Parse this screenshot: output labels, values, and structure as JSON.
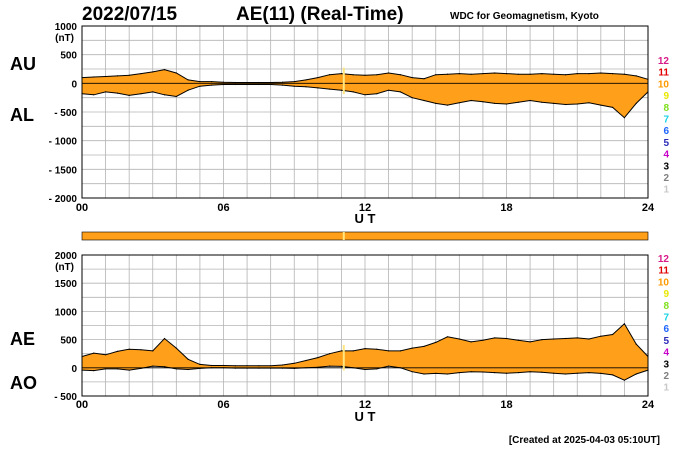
{
  "header": {
    "date": "2022/07/15",
    "title": "AE(11) (Real-Time)",
    "source": "WDC for Geomagnetism, Kyoto"
  },
  "footer": {
    "created": "[Created at 2025-04-03 05:10UT]"
  },
  "legend_numbers": [
    {
      "label": "12",
      "color": "#d81b8a"
    },
    {
      "label": "11",
      "color": "#e00000"
    },
    {
      "label": "10",
      "color": "#ff9a00"
    },
    {
      "label": "9",
      "color": "#e8e800"
    },
    {
      "label": "8",
      "color": "#7fe01e"
    },
    {
      "label": "7",
      "color": "#19d3e6"
    },
    {
      "label": "6",
      "color": "#1e66ff"
    },
    {
      "label": "5",
      "color": "#2a2ab8"
    },
    {
      "label": "4",
      "color": "#c800c8"
    },
    {
      "label": "3",
      "color": "#000000"
    },
    {
      "label": "2",
      "color": "#808080"
    },
    {
      "label": "1",
      "color": "#c8c8c8"
    }
  ],
  "colors": {
    "fill": "#ff9f1a",
    "line": "#000000",
    "grid": "#b4b4b4",
    "marker": "#ffe680",
    "status_bar": "#ff9f1a"
  },
  "chart_data": [
    {
      "type": "area",
      "panel": "AU/AL",
      "upper_label": "AU",
      "lower_label": "AL",
      "unit": "(nT)",
      "xlabel": "U T",
      "xlim": [
        0,
        24
      ],
      "ylim": [
        -2000,
        1000
      ],
      "x_ticks": [
        "00",
        "06",
        "12",
        "18",
        "24"
      ],
      "y_ticks": [
        "1000",
        "500",
        "0",
        "- 500",
        "- 1000",
        "- 1500",
        "- 2000"
      ],
      "x": [
        0,
        0.5,
        1,
        1.5,
        2,
        2.5,
        3,
        3.5,
        4,
        4.5,
        5,
        5.5,
        6,
        6.5,
        7,
        7.5,
        8,
        8.5,
        9,
        9.5,
        10,
        10.5,
        11,
        11.5,
        12,
        12.5,
        13,
        13.5,
        14,
        14.5,
        15,
        15.5,
        16,
        16.5,
        17,
        17.5,
        18,
        18.5,
        19,
        19.5,
        20,
        20.5,
        21,
        21.5,
        22,
        22.5,
        23,
        23.5,
        24
      ],
      "series": [
        {
          "name": "AU",
          "values": [
            100,
            110,
            120,
            130,
            140,
            170,
            200,
            240,
            180,
            60,
            30,
            30,
            20,
            15,
            15,
            15,
            15,
            20,
            30,
            60,
            100,
            150,
            170,
            150,
            140,
            150,
            180,
            150,
            100,
            80,
            150,
            160,
            170,
            160,
            170,
            180,
            170,
            160,
            160,
            170,
            160,
            150,
            170,
            170,
            180,
            170,
            160,
            130,
            70
          ]
        },
        {
          "name": "AL",
          "values": [
            -180,
            -200,
            -150,
            -170,
            -210,
            -180,
            -150,
            -200,
            -230,
            -120,
            -50,
            -30,
            -20,
            -20,
            -20,
            -20,
            -20,
            -30,
            -50,
            -60,
            -80,
            -100,
            -120,
            -150,
            -200,
            -180,
            -120,
            -150,
            -250,
            -300,
            -350,
            -380,
            -340,
            -300,
            -320,
            -350,
            -360,
            -330,
            -300,
            -330,
            -350,
            -370,
            -360,
            -340,
            -380,
            -420,
            -600,
            -350,
            -150
          ]
        }
      ]
    },
    {
      "type": "area",
      "panel": "AE/AO",
      "upper_label": "AE",
      "lower_label": "AO",
      "unit": "(nT)",
      "xlabel": "U T",
      "xlim": [
        0,
        24
      ],
      "ylim": [
        -500,
        2000
      ],
      "x_ticks": [
        "00",
        "06",
        "12",
        "18",
        "24"
      ],
      "y_ticks": [
        "2000",
        "1500",
        "1000",
        "500",
        "0",
        "- 500"
      ],
      "x": [
        0,
        0.5,
        1,
        1.5,
        2,
        2.5,
        3,
        3.5,
        4,
        4.5,
        5,
        5.5,
        6,
        6.5,
        7,
        7.5,
        8,
        8.5,
        9,
        9.5,
        10,
        10.5,
        11,
        11.5,
        12,
        12.5,
        13,
        13.5,
        14,
        14.5,
        15,
        15.5,
        16,
        16.5,
        17,
        17.5,
        18,
        18.5,
        19,
        19.5,
        20,
        20.5,
        21,
        21.5,
        22,
        22.5,
        23,
        23.5,
        24
      ],
      "series": [
        {
          "name": "AE",
          "values": [
            200,
            260,
            230,
            290,
            330,
            320,
            300,
            520,
            350,
            150,
            60,
            40,
            40,
            35,
            35,
            35,
            35,
            50,
            80,
            130,
            180,
            250,
            300,
            300,
            340,
            330,
            300,
            300,
            350,
            380,
            450,
            550,
            510,
            460,
            490,
            530,
            520,
            490,
            460,
            500,
            510,
            520,
            530,
            510,
            560,
            590,
            780,
            420,
            200
          ]
        },
        {
          "name": "AO",
          "values": [
            -40,
            -50,
            -20,
            -20,
            -40,
            -10,
            30,
            20,
            -20,
            -30,
            -10,
            0,
            0,
            -5,
            -5,
            -5,
            -5,
            -5,
            -10,
            0,
            10,
            30,
            25,
            0,
            -30,
            -20,
            30,
            0,
            -70,
            -110,
            -100,
            -110,
            -85,
            -70,
            -75,
            -85,
            -95,
            -85,
            -70,
            -80,
            -95,
            -110,
            -95,
            -85,
            -100,
            -125,
            -220,
            -110,
            -40
          ]
        }
      ]
    }
  ]
}
